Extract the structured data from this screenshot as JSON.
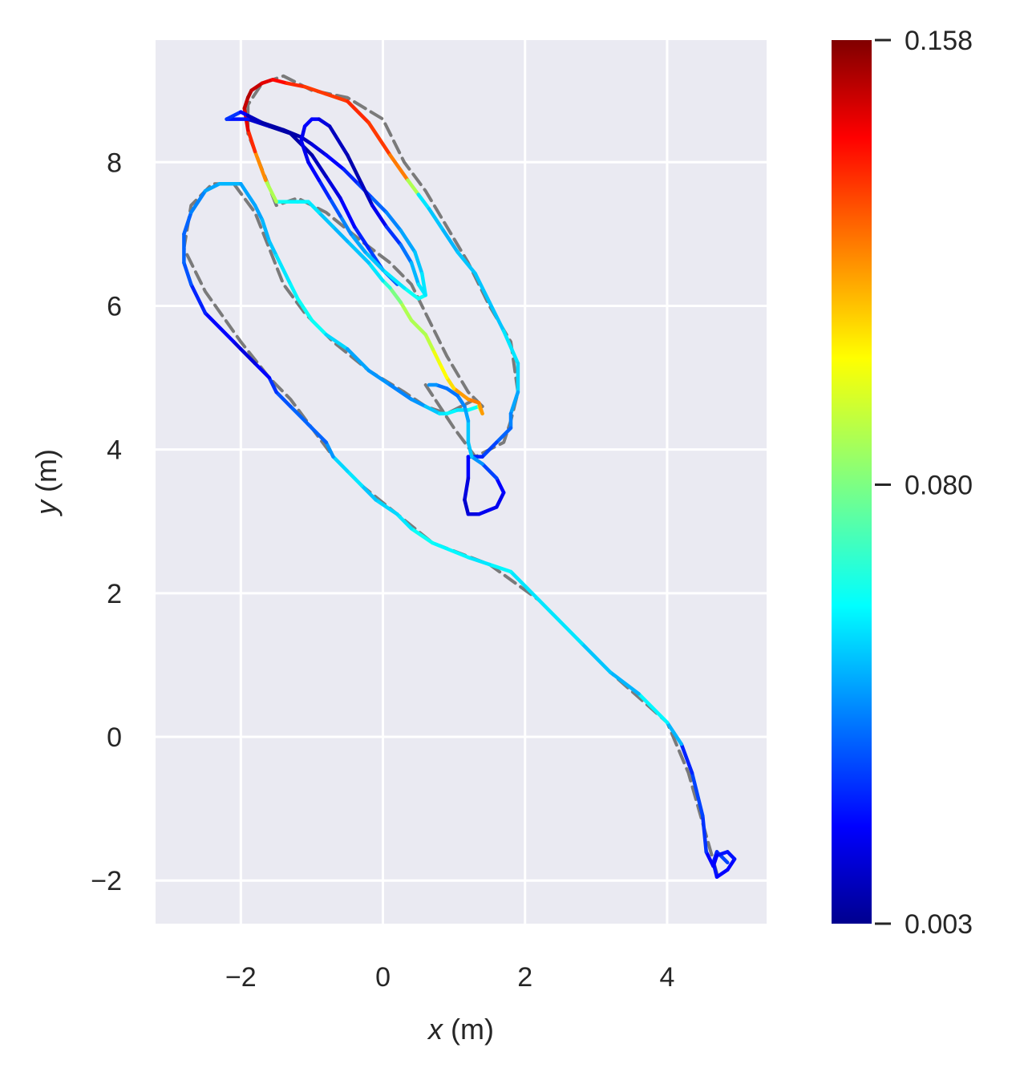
{
  "chart_data": {
    "type": "line",
    "xlabel": {
      "var": "x",
      "unit": " (m)"
    },
    "ylabel": {
      "var": "y",
      "unit": " (m)"
    },
    "xlim": [
      -3.2,
      5.4
    ],
    "ylim": [
      -2.6,
      9.7
    ],
    "x_ticks": [
      -2,
      0,
      2,
      4
    ],
    "x_tick_labels": [
      "−2",
      "0",
      "2",
      "4"
    ],
    "y_ticks": [
      -2,
      0,
      2,
      4,
      6,
      8
    ],
    "y_tick_labels": [
      "−2",
      "0",
      "2",
      "4",
      "6",
      "8"
    ],
    "grid": true,
    "background_color": "#eaeaf2",
    "colormap": "jet",
    "colorbar": {
      "min": 0.003,
      "mid": 0.08,
      "max": 0.158,
      "tick_labels": [
        "0.158",
        "0.080",
        "0.003"
      ]
    },
    "reference_style": {
      "color": "#7a7a7a",
      "dash": "dashed"
    },
    "series": [
      {
        "role": "reference",
        "x": [
          4.7,
          4.5,
          4.3,
          4.0,
          3.2,
          2.2,
          1.5,
          0.7,
          0.2,
          -0.3,
          -0.7,
          -1.0,
          -1.3,
          -1.6,
          -2.0,
          -2.5,
          -2.8,
          -2.7,
          -2.4,
          -2.1,
          -1.8,
          -1.6,
          -1.4,
          -1.1,
          -0.7,
          -0.2,
          0.3,
          0.6,
          0.9,
          1.1,
          1.3,
          1.4
        ],
        "y": [
          -1.9,
          -1.2,
          -0.5,
          0.2,
          0.9,
          1.9,
          2.4,
          2.7,
          3.1,
          3.5,
          3.9,
          4.3,
          4.7,
          5.0,
          5.5,
          6.2,
          6.8,
          7.4,
          7.7,
          7.7,
          7.3,
          6.8,
          6.3,
          5.9,
          5.5,
          5.1,
          4.8,
          4.6,
          4.5,
          4.6,
          4.7,
          4.6
        ]
      },
      {
        "role": "reference",
        "x": [
          1.4,
          1.2,
          0.9,
          0.6,
          0.4,
          0.2,
          0.1,
          -0.3,
          -0.8,
          -1.2,
          -1.5,
          -1.7,
          -1.9,
          -1.9,
          -1.7,
          -1.4,
          -1.0,
          -0.5,
          0.0,
          0.3,
          0.6,
          0.9,
          1.2,
          1.5,
          1.8,
          1.9,
          1.8,
          1.7,
          1.3,
          1.0,
          0.6
        ],
        "y": [
          4.6,
          4.8,
          5.3,
          5.9,
          6.3,
          6.5,
          6.6,
          6.9,
          7.3,
          7.5,
          7.4,
          7.9,
          8.4,
          8.8,
          9.1,
          9.2,
          9.0,
          8.9,
          8.6,
          8.0,
          7.6,
          7.1,
          6.6,
          6.0,
          5.5,
          4.8,
          4.4,
          4.1,
          3.9,
          4.3,
          4.9
        ]
      },
      {
        "role": "estimated",
        "x": [
          4.85,
          4.7,
          4.65,
          4.7,
          4.85,
          4.95,
          4.85,
          4.7,
          4.65,
          4.55,
          4.5,
          4.35,
          4.2,
          4.0,
          3.6,
          3.2,
          2.8,
          2.2,
          1.8,
          1.5,
          1.2,
          0.7,
          0.4,
          0.2,
          -0.1,
          -0.3,
          -0.5,
          -0.7,
          -0.8,
          -1.0,
          -1.1,
          -1.3,
          -1.5,
          -1.6,
          -1.8,
          -2.0,
          -2.1,
          -2.5,
          -2.7,
          -2.8,
          -2.8,
          -2.7,
          -2.5,
          -2.3,
          -2.0,
          -1.8,
          -1.7,
          -1.6,
          -1.5,
          -1.3,
          -1.2,
          -1.0,
          -0.8,
          -0.5,
          -0.2,
          0.1,
          0.4,
          0.6,
          0.8,
          0.9,
          1.05,
          1.2,
          1.35,
          1.4,
          1.35,
          1.2,
          1.0,
          0.9,
          0.8,
          0.7,
          0.6,
          0.4,
          0.25,
          0.1,
          0.0,
          -0.2,
          -0.5,
          -0.7,
          -0.9,
          -1.05,
          -1.2,
          -1.35,
          -1.5,
          -1.65,
          -1.8,
          -1.9,
          -1.95,
          -1.9,
          -1.85,
          -1.7,
          -1.55,
          -1.35,
          -1.1,
          -0.8,
          -0.5,
          -0.2,
          0.1,
          0.35,
          0.5,
          0.65,
          0.85,
          1.05,
          1.3,
          1.5,
          1.7,
          1.9,
          1.9,
          1.8,
          1.8,
          1.6,
          1.4,
          1.2,
          1.2,
          1.15,
          1.2,
          1.35,
          1.6,
          1.7,
          1.6,
          1.4,
          1.25,
          1.2,
          1.2,
          1.15,
          1.05,
          0.9,
          0.75,
          0.65
        ],
        "y": [
          -1.75,
          -1.6,
          -1.75,
          -1.95,
          -1.85,
          -1.7,
          -1.6,
          -1.65,
          -1.8,
          -1.6,
          -1.1,
          -0.5,
          -0.1,
          0.2,
          0.6,
          0.9,
          1.3,
          1.9,
          2.3,
          2.4,
          2.5,
          2.7,
          2.9,
          3.1,
          3.3,
          3.5,
          3.7,
          3.9,
          4.1,
          4.3,
          4.4,
          4.6,
          4.8,
          5.0,
          5.2,
          5.4,
          5.5,
          5.9,
          6.3,
          6.6,
          7.0,
          7.3,
          7.6,
          7.7,
          7.7,
          7.4,
          7.2,
          6.9,
          6.7,
          6.3,
          6.1,
          5.8,
          5.6,
          5.4,
          5.1,
          4.9,
          4.7,
          4.6,
          4.5,
          4.5,
          4.55,
          4.55,
          4.6,
          4.5,
          4.65,
          4.7,
          4.85,
          5.0,
          5.2,
          5.4,
          5.6,
          5.8,
          6.05,
          6.25,
          6.35,
          6.6,
          6.9,
          7.1,
          7.3,
          7.45,
          7.45,
          7.45,
          7.45,
          7.75,
          8.15,
          8.45,
          8.75,
          8.9,
          9.0,
          9.1,
          9.15,
          9.1,
          9.05,
          8.95,
          8.85,
          8.55,
          8.1,
          7.75,
          7.55,
          7.35,
          7.05,
          6.75,
          6.45,
          6.05,
          5.65,
          5.2,
          4.8,
          4.5,
          4.3,
          4.1,
          3.9,
          3.9,
          3.6,
          3.3,
          3.1,
          3.1,
          3.2,
          3.4,
          3.6,
          3.8,
          3.9,
          4.1,
          4.4,
          4.6,
          4.75,
          4.85,
          4.9,
          4.9
        ],
        "error": [
          0.04,
          0.025,
          0.03,
          0.02,
          0.025,
          0.02,
          0.03,
          0.02,
          0.025,
          0.02,
          0.04,
          0.025,
          0.03,
          0.07,
          0.05,
          0.05,
          0.055,
          0.06,
          0.055,
          0.065,
          0.05,
          0.07,
          0.055,
          0.06,
          0.05,
          0.055,
          0.06,
          0.05,
          0.04,
          0.035,
          0.04,
          0.035,
          0.035,
          0.025,
          0.02,
          0.015,
          0.02,
          0.025,
          0.03,
          0.04,
          0.035,
          0.04,
          0.045,
          0.05,
          0.05,
          0.045,
          0.05,
          0.05,
          0.055,
          0.06,
          0.06,
          0.065,
          0.06,
          0.05,
          0.045,
          0.045,
          0.04,
          0.05,
          0.055,
          0.06,
          0.06,
          0.055,
          0.07,
          0.11,
          0.12,
          0.12,
          0.11,
          0.1,
          0.1,
          0.095,
          0.085,
          0.09,
          0.085,
          0.075,
          0.06,
          0.055,
          0.05,
          0.05,
          0.055,
          0.06,
          0.06,
          0.06,
          0.065,
          0.11,
          0.125,
          0.14,
          0.145,
          0.15,
          0.15,
          0.145,
          0.14,
          0.135,
          0.13,
          0.13,
          0.13,
          0.135,
          0.125,
          0.115,
          0.06,
          0.055,
          0.05,
          0.05,
          0.055,
          0.05,
          0.055,
          0.06,
          0.05,
          0.045,
          0.04,
          0.035,
          0.03,
          0.025,
          0.02,
          0.015,
          0.015,
          0.02,
          0.02,
          0.02,
          0.025,
          0.04,
          0.05,
          0.055,
          0.05,
          0.045,
          0.04,
          0.04,
          0.04,
          0.05
        ]
      },
      {
        "role": "estimated",
        "x": [
          0.2,
          0.0,
          -0.2,
          -0.4,
          -0.6,
          -0.8,
          -1.0,
          -1.3,
          -1.6,
          -1.9,
          -2.2,
          -2.0,
          -1.9,
          -1.7,
          -1.4,
          -1.15,
          -1.0,
          -0.8,
          -0.55,
          -0.35,
          -0.15,
          0.05,
          0.25,
          0.45,
          0.55,
          0.6,
          0.5,
          0.3,
          0.0,
          -0.25,
          -0.45,
          -0.6,
          -0.75,
          -0.9,
          -1.05,
          -1.15,
          -1.1,
          -1.0,
          -0.9,
          -0.75,
          -0.5,
          -0.3,
          -0.15,
          0.05,
          0.25,
          0.4,
          0.5,
          0.6
        ],
        "y": [
          6.3,
          6.5,
          6.8,
          7.1,
          7.5,
          7.8,
          8.1,
          8.4,
          8.5,
          8.6,
          8.6,
          8.7,
          8.65,
          8.55,
          8.45,
          8.35,
          8.25,
          8.1,
          7.9,
          7.7,
          7.5,
          7.3,
          7.05,
          6.75,
          6.45,
          6.15,
          6.1,
          6.25,
          6.5,
          6.75,
          7.0,
          7.25,
          7.5,
          7.75,
          8.0,
          8.3,
          8.5,
          8.6,
          8.6,
          8.5,
          8.1,
          7.7,
          7.4,
          7.1,
          6.85,
          6.6,
          6.3,
          6.15
        ],
        "error": [
          0.04,
          0.035,
          0.03,
          0.025,
          0.02,
          0.015,
          0.01,
          0.008,
          0.01,
          0.02,
          0.03,
          0.03,
          0.015,
          0.01,
          0.008,
          0.01,
          0.015,
          0.02,
          0.025,
          0.03,
          0.035,
          0.04,
          0.045,
          0.05,
          0.055,
          0.06,
          0.065,
          0.06,
          0.055,
          0.05,
          0.045,
          0.04,
          0.03,
          0.025,
          0.02,
          0.02,
          0.02,
          0.025,
          0.02,
          0.015,
          0.01,
          0.01,
          0.015,
          0.025,
          0.035,
          0.045,
          0.055,
          0.06
        ]
      }
    ]
  }
}
